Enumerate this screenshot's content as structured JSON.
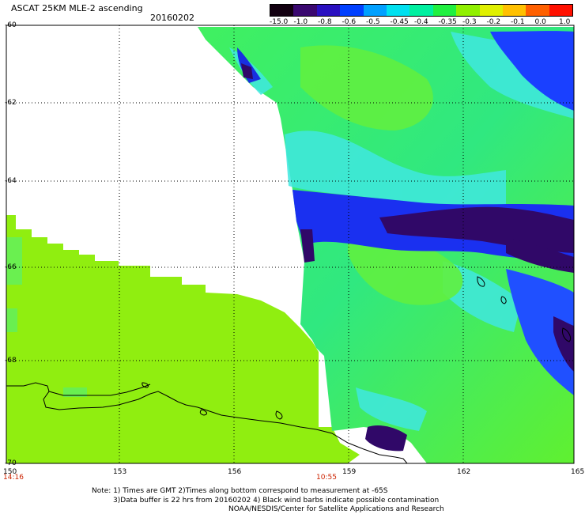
{
  "header": {
    "title": "ASCAT 25KM MLE-2 ascending",
    "date": "20160202"
  },
  "colorbar": {
    "labels": [
      "-15.0",
      "-1.0",
      "-0.8",
      "-0.6",
      "-0.5",
      "-0.45",
      "-0.4",
      "-0.35",
      "-0.3",
      "-0.2",
      "-0.1",
      "0.0",
      "1.0"
    ],
    "colors": [
      "#120010",
      "#3a0870",
      "#2a10c0",
      "#0040ff",
      "#00a0ff",
      "#00e0f0",
      "#00f0a0",
      "#20f040",
      "#90f000",
      "#e0f000",
      "#ffc000",
      "#ff6000",
      "#ff1000"
    ]
  },
  "axes": {
    "lat_labels": [
      "-60",
      "-62",
      "-64",
      "-66",
      "-68",
      "-70"
    ],
    "lon_labels": [
      "150",
      "153",
      "156",
      "159",
      "162",
      "165"
    ]
  },
  "times": {
    "left": "14:16",
    "mid": "10:55"
  },
  "notes": [
    "Note: 1) Times are GMT 2)Times along bottom correspond to measurement at -65S",
    "3)Data buffer is 22 hrs from 20160202 4) Black wind barbs indicate possible contamination",
    "NOAA/NESDIS/Center for Satellite Applications and Research"
  ]
}
